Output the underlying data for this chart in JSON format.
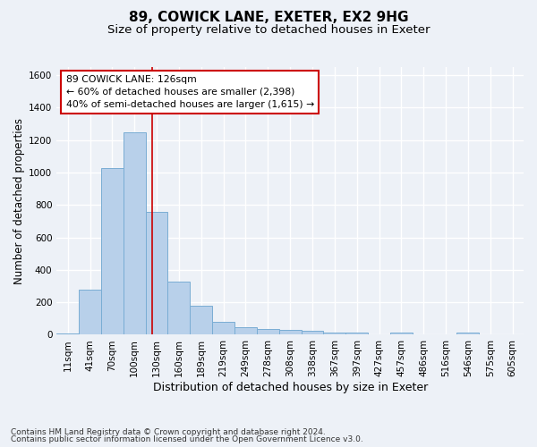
{
  "title1": "89, COWICK LANE, EXETER, EX2 9HG",
  "title2": "Size of property relative to detached houses in Exeter",
  "xlabel": "Distribution of detached houses by size in Exeter",
  "ylabel": "Number of detached properties",
  "categories": [
    "11sqm",
    "41sqm",
    "70sqm",
    "100sqm",
    "130sqm",
    "160sqm",
    "189sqm",
    "219sqm",
    "249sqm",
    "278sqm",
    "308sqm",
    "338sqm",
    "367sqm",
    "397sqm",
    "427sqm",
    "457sqm",
    "486sqm",
    "516sqm",
    "546sqm",
    "575sqm",
    "605sqm"
  ],
  "values": [
    10,
    280,
    1030,
    1250,
    755,
    330,
    180,
    80,
    45,
    38,
    30,
    22,
    15,
    15,
    0,
    12,
    0,
    0,
    15,
    0,
    0
  ],
  "bar_color": "#b8d0ea",
  "bar_edge_color": "#7aadd4",
  "property_line_bin": 3.78,
  "annotation_line1": "89 COWICK LANE: 126sqm",
  "annotation_line2": "← 60% of detached houses are smaller (2,398)",
  "annotation_line3": "40% of semi-detached houses are larger (1,615) →",
  "annotation_box_color": "#ffffff",
  "annotation_box_edge": "#cc0000",
  "vline_color": "#cc0000",
  "ylim": [
    0,
    1650
  ],
  "yticks": [
    0,
    200,
    400,
    600,
    800,
    1000,
    1200,
    1400,
    1600
  ],
  "footer1": "Contains HM Land Registry data © Crown copyright and database right 2024.",
  "footer2": "Contains public sector information licensed under the Open Government Licence v3.0.",
  "background_color": "#edf1f7",
  "plot_background": "#edf1f7",
  "grid_color": "#ffffff",
  "title1_fontsize": 11,
  "title2_fontsize": 9.5,
  "xlabel_fontsize": 9,
  "ylabel_fontsize": 8.5,
  "tick_fontsize": 7.5,
  "footer_fontsize": 6.5
}
